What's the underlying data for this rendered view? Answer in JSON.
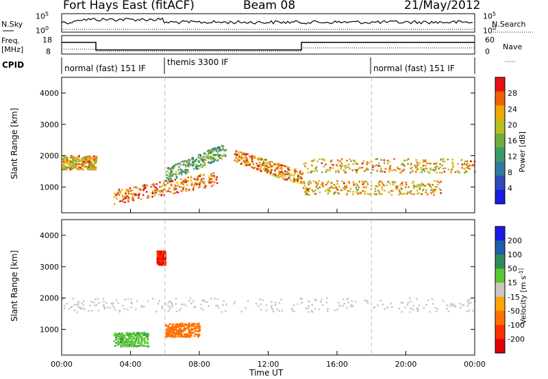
{
  "header": {
    "station": "Fort Hays East (fitACF)",
    "beam": "Beam 08",
    "date": "21/May/2012"
  },
  "strip": {
    "nsky_label": "N.Sky",
    "nsearch_label": "N.Search",
    "nsky_ticks": [
      "10^5",
      "10^0"
    ],
    "nsearch_ticks": [
      "10^5",
      "10^0"
    ],
    "freq_label_1": "Freq.",
    "freq_label_2": "[MHz]",
    "freq_ticks": [
      "18",
      "8"
    ],
    "nave_label": "Nave",
    "nave_ticks": [
      "60",
      "0"
    ],
    "cpid_label": "CPID",
    "cpid_segments": [
      {
        "label": "normal (fast) 151 IF",
        "start_h": 0,
        "end_h": 6
      },
      {
        "label": "themis 3300 IF",
        "start_h": 6,
        "end_h": 18
      },
      {
        "label": "normal (fast) 151 IF",
        "start_h": 18,
        "end_h": 24
      }
    ]
  },
  "chart_data": [
    {
      "type": "heatmap",
      "panel": "power",
      "xlabel": "",
      "ylabel": "Slant Range [km]",
      "xlim": [
        0,
        24
      ],
      "ylim": [
        180,
        4500
      ],
      "yticks": [
        1000,
        2000,
        3000,
        4000
      ],
      "colorbar": {
        "label": "Power [dB]",
        "ticks": [
          4,
          8,
          12,
          16,
          20,
          24,
          28
        ],
        "range": [
          0,
          32
        ],
        "colors": [
          "#1a1ae6",
          "#2c4bbf",
          "#2f7aa0",
          "#3a9a6a",
          "#6fae3a",
          "#b9c020",
          "#f0a800",
          "#f06000",
          "#e81010"
        ]
      },
      "features": [
        {
          "name": "early-echo",
          "start_h": 0,
          "end_h": 2,
          "range_km": 1800,
          "power_db": 22
        },
        {
          "name": "evening-band",
          "start_h": 3,
          "end_h": 9,
          "range_km": [
            700,
            1300
          ],
          "power_db": 26
        },
        {
          "name": "rising-arc",
          "start_h": 6,
          "end_h": 9.5,
          "range_km": [
            1400,
            2200
          ],
          "power_db": 14
        },
        {
          "name": "descending-arc",
          "start_h": 10,
          "end_h": 14,
          "range_km": [
            2000,
            1300
          ],
          "power_db": 24
        },
        {
          "name": "upper-band",
          "start_h": 14,
          "end_h": 24,
          "range_km": 1700,
          "power_db": 22
        },
        {
          "name": "lower-band",
          "start_h": 14,
          "end_h": 22,
          "range_km": 1000,
          "power_db": 22
        }
      ]
    },
    {
      "type": "heatmap",
      "panel": "velocity",
      "xlabel": "Time UT",
      "ylabel": "Slant Range [km]",
      "xlim": [
        0,
        24
      ],
      "ylim": [
        180,
        4500
      ],
      "xticks": [
        "00:00",
        "04:00",
        "08:00",
        "12:00",
        "16:00",
        "20:00",
        "00:00"
      ],
      "yticks": [
        1000,
        2000,
        3000,
        4000
      ],
      "colorbar": {
        "label": "Velocity [m s^-1]",
        "ticks": [
          200,
          100,
          50,
          15,
          -15,
          -50,
          -100,
          -200
        ],
        "colors": [
          "#1a1ae6",
          "#1f5fa8",
          "#2e8b57",
          "#5cc832",
          "#c8c8c0",
          "#ffa500",
          "#ff7000",
          "#ff3000",
          "#e00000"
        ]
      },
      "features": [
        {
          "name": "gs-band",
          "start_h": 0,
          "end_h": 24,
          "range_km": 1800,
          "velocity_ms": 0
        },
        {
          "name": "red-patch",
          "start_h": 5.5,
          "end_h": 6,
          "range_km": 3300,
          "velocity_ms": -200
        },
        {
          "name": "orange-patch",
          "start_h": 6,
          "end_h": 8,
          "range_km": 1000,
          "velocity_ms": -80
        },
        {
          "name": "green-patch",
          "start_h": 3,
          "end_h": 5,
          "range_km": 700,
          "velocity_ms": 40
        }
      ]
    }
  ]
}
